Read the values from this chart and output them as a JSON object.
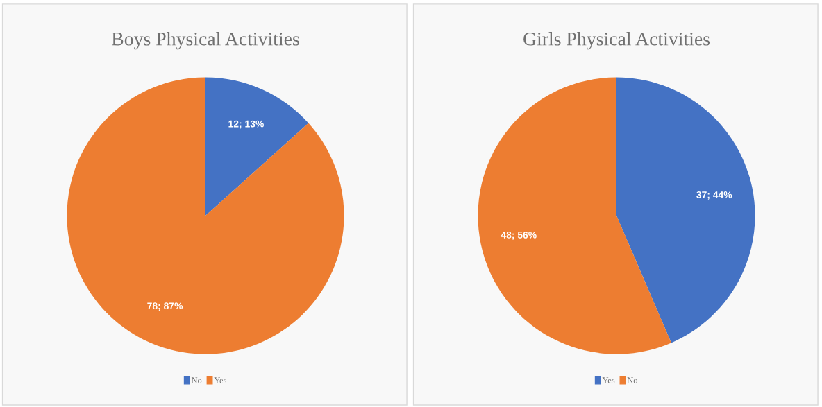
{
  "chart_data": [
    {
      "type": "pie",
      "title": "Boys Physical Activities",
      "categories": [
        "No",
        "Yes"
      ],
      "values": [
        12,
        78
      ],
      "colors": [
        "#4472c4",
        "#ed7d31"
      ],
      "value_labels": [
        "12; 13%",
        "78; 87%"
      ],
      "legend": "bottom"
    },
    {
      "type": "pie",
      "title": "Girls Physical Activities",
      "categories": [
        "Yes",
        "No"
      ],
      "values": [
        37,
        48
      ],
      "colors": [
        "#4472c4",
        "#ed7d31"
      ],
      "value_labels": [
        "37; 44%",
        "48; 56%"
      ],
      "legend": "bottom"
    }
  ]
}
